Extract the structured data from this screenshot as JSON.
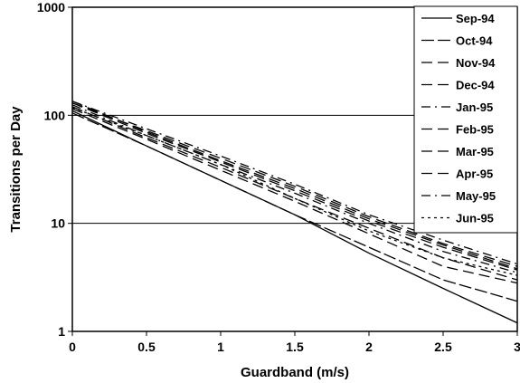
{
  "chart_data": {
    "type": "line",
    "title": "",
    "xlabel": "Guardband (m/s)",
    "ylabel": "Transitions per Day",
    "xlim": [
      0,
      3
    ],
    "ylim": [
      1,
      1000
    ],
    "y_scale": "log",
    "grid": "horizontal",
    "legend_position": "top-right",
    "x_ticks": [
      "0",
      "0.5",
      "1",
      "1.5",
      "2",
      "2.5",
      "3"
    ],
    "y_ticks": [
      "1",
      "10",
      "100",
      "1000"
    ],
    "x": [
      0,
      0.5,
      1,
      1.5,
      2,
      2.5,
      3
    ],
    "series": [
      {
        "name": "Sep-94",
        "values": [
          110,
          52,
          25,
          12,
          5.3,
          2.5,
          1.2
        ],
        "dash": ""
      },
      {
        "name": "Oct-94",
        "values": [
          105,
          52,
          25,
          12,
          6.0,
          3.0,
          1.9
        ],
        "dash": "14 4"
      },
      {
        "name": "Nov-94",
        "values": [
          115,
          60,
          31,
          16,
          8.0,
          4.0,
          2.8
        ],
        "dash": "12 6"
      },
      {
        "name": "Dec-94",
        "values": [
          120,
          62,
          33,
          17,
          9.0,
          4.8,
          3.0
        ],
        "dash": "12 6"
      },
      {
        "name": "Jan-95",
        "values": [
          125,
          65,
          35,
          19,
          10,
          5.5,
          3.5
        ],
        "dash": "10 5 2 5"
      },
      {
        "name": "Feb-95",
        "values": [
          130,
          68,
          37,
          20,
          10.5,
          6.0,
          3.7
        ],
        "dash": "12 6"
      },
      {
        "name": "Mar-95",
        "values": [
          135,
          70,
          38,
          21,
          11,
          6.3,
          3.8
        ],
        "dash": "12 6"
      },
      {
        "name": "Apr-95",
        "values": [
          130,
          72,
          40,
          22,
          11.5,
          6.5,
          4.0
        ],
        "dash": "12 6"
      },
      {
        "name": "May-95",
        "values": [
          135,
          75,
          42,
          23,
          12,
          7.0,
          4.2
        ],
        "dash": "10 5 2 5"
      },
      {
        "name": "Jun-95",
        "values": [
          118,
          65,
          35,
          17,
          8.5,
          4.8,
          3.3
        ],
        "dash": "3 4"
      }
    ]
  }
}
